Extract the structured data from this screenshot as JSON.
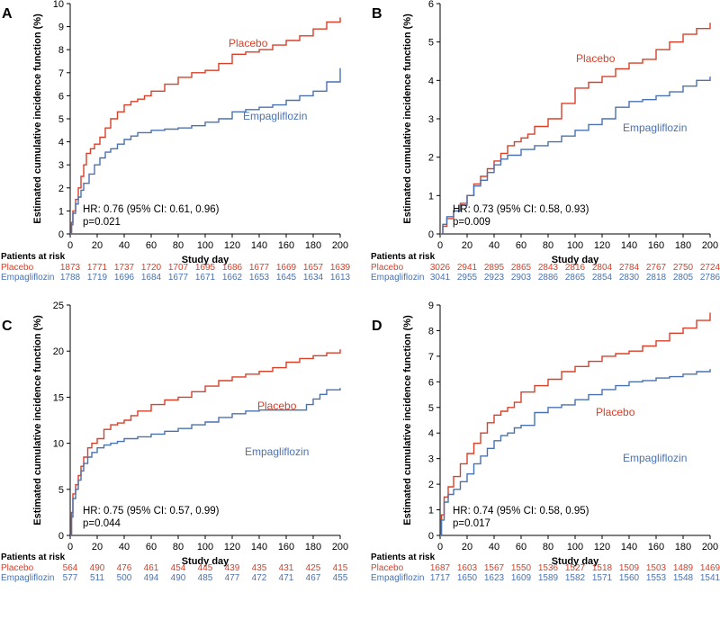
{
  "colors": {
    "placebo": "#d8402a",
    "empagliflozin": "#4a72b0",
    "axis": "#000000"
  },
  "chart_data": {
    "type": "line",
    "step": true,
    "panels": [
      {
        "label": "A",
        "ylabel": "Estimated cumulative incidence function (%)",
        "xlabel": "Study day",
        "xlim": [
          0,
          200
        ],
        "ylim": [
          0,
          10
        ],
        "xticks": [
          0,
          20,
          40,
          60,
          80,
          100,
          120,
          140,
          160,
          180,
          200
        ],
        "yticks": [
          0,
          1,
          2,
          3,
          4,
          5,
          6,
          7,
          8,
          9,
          10
        ],
        "series": [
          {
            "name": "Placebo",
            "key": "placebo",
            "x": [
              0,
              1,
              2,
              4,
              6,
              8,
              10,
              12,
              15,
              18,
              22,
              26,
              30,
              35,
              40,
              45,
              50,
              55,
              60,
              70,
              80,
              90,
              100,
              110,
              120,
              130,
              140,
              150,
              160,
              170,
              180,
              190,
              200
            ],
            "y": [
              0,
              0.5,
              1.0,
              1.5,
              2.0,
              2.5,
              3.0,
              3.5,
              3.7,
              3.9,
              4.2,
              4.6,
              5.0,
              5.3,
              5.6,
              5.75,
              5.85,
              6.0,
              6.2,
              6.5,
              6.8,
              7.0,
              7.1,
              7.4,
              7.8,
              7.9,
              8.0,
              8.2,
              8.4,
              8.6,
              8.9,
              9.2,
              9.4
            ]
          },
          {
            "name": "Empagliflozin",
            "key": "empagliflozin",
            "x": [
              0,
              1,
              2,
              4,
              6,
              8,
              10,
              14,
              18,
              22,
              26,
              30,
              35,
              40,
              45,
              50,
              60,
              70,
              80,
              90,
              100,
              110,
              120,
              130,
              140,
              150,
              160,
              170,
              180,
              190,
              200
            ],
            "y": [
              0,
              0.4,
              0.9,
              1.3,
              1.6,
              1.9,
              2.2,
              2.6,
              3.0,
              3.3,
              3.55,
              3.7,
              3.9,
              4.1,
              4.25,
              4.4,
              4.5,
              4.55,
              4.6,
              4.7,
              4.85,
              5.0,
              5.3,
              5.4,
              5.5,
              5.6,
              5.8,
              6.0,
              6.2,
              6.6,
              7.2
            ]
          }
        ],
        "hr_text": "HR: 0.76 (95% CI: 0.61, 0.96)",
        "p_text": "p=0.021",
        "risk": {
          "header": "Patients at risk",
          "rows": [
            {
              "name": "Placebo",
              "key": "placebo",
              "values": [
                "1873",
                "1771",
                "1737",
                "1720",
                "1707",
                "1695",
                "1686",
                "1677",
                "1669",
                "1657",
                "1639"
              ]
            },
            {
              "name": "Empagliflozin",
              "key": "empagliflozin",
              "values": [
                "1788",
                "1719",
                "1696",
                "1684",
                "1677",
                "1671",
                "1662",
                "1653",
                "1645",
                "1634",
                "1613"
              ]
            }
          ]
        }
      },
      {
        "label": "B",
        "ylabel": "Estimated cumulative incidence function (%)",
        "xlabel": "Study day",
        "xlim": [
          0,
          200
        ],
        "ylim": [
          0,
          6
        ],
        "xticks": [
          0,
          20,
          40,
          60,
          80,
          100,
          120,
          140,
          160,
          180,
          200
        ],
        "yticks": [
          0,
          1,
          2,
          3,
          4,
          5,
          6
        ],
        "series": [
          {
            "name": "Placebo",
            "key": "placebo",
            "x": [
              0,
              2,
              5,
              10,
              15,
              20,
              25,
              30,
              35,
              40,
              45,
              50,
              55,
              60,
              65,
              70,
              80,
              90,
              100,
              110,
              120,
              130,
              140,
              150,
              160,
              170,
              180,
              190,
              200
            ],
            "y": [
              0,
              0.2,
              0.4,
              0.6,
              0.8,
              1.0,
              1.3,
              1.5,
              1.7,
              1.9,
              2.1,
              2.3,
              2.4,
              2.5,
              2.6,
              2.8,
              3.0,
              3.4,
              3.8,
              3.95,
              4.1,
              4.3,
              4.45,
              4.55,
              4.8,
              5.0,
              5.2,
              5.35,
              5.5
            ]
          },
          {
            "name": "Empagliflozin",
            "key": "empagliflozin",
            "x": [
              0,
              2,
              5,
              10,
              15,
              20,
              25,
              30,
              35,
              40,
              45,
              50,
              60,
              70,
              80,
              90,
              100,
              110,
              120,
              130,
              140,
              150,
              160,
              170,
              180,
              190,
              200
            ],
            "y": [
              0,
              0.25,
              0.45,
              0.6,
              0.75,
              1.0,
              1.25,
              1.4,
              1.6,
              1.8,
              1.95,
              2.05,
              2.2,
              2.3,
              2.4,
              2.55,
              2.7,
              2.85,
              3.0,
              3.3,
              3.45,
              3.5,
              3.6,
              3.7,
              3.85,
              4.0,
              4.1
            ]
          }
        ],
        "hr_text": "HR: 0.73 (95% CI: 0.58, 0.93)",
        "p_text": "p=0.009",
        "risk": {
          "header": "Patients at risk",
          "rows": [
            {
              "name": "Placebo",
              "key": "placebo",
              "values": [
                "3026",
                "2941",
                "2895",
                "2865",
                "2843",
                "2816",
                "2804",
                "2784",
                "2767",
                "2750",
                "2724"
              ]
            },
            {
              "name": "Empagliflozin",
              "key": "empagliflozin",
              "values": [
                "3041",
                "2955",
                "2923",
                "2903",
                "2886",
                "2865",
                "2854",
                "2830",
                "2818",
                "2805",
                "2786"
              ]
            }
          ]
        }
      },
      {
        "label": "C",
        "ylabel": "Estimated cumulative incidence function (%)",
        "xlabel": "Study day",
        "xlim": [
          0,
          200
        ],
        "ylim": [
          0,
          25
        ],
        "xticks": [
          0,
          20,
          40,
          60,
          80,
          100,
          120,
          140,
          160,
          180,
          200
        ],
        "yticks": [
          0,
          5,
          10,
          15,
          20,
          25
        ],
        "series": [
          {
            "name": "Placebo",
            "key": "placebo",
            "x": [
              0,
              1,
              2,
              4,
              6,
              8,
              10,
              13,
              16,
              20,
              25,
              30,
              35,
              40,
              45,
              50,
              60,
              70,
              80,
              90,
              100,
              110,
              120,
              130,
              140,
              150,
              160,
              170,
              180,
              190,
              200
            ],
            "y": [
              0,
              2.5,
              4.5,
              5.5,
              6.5,
              7.5,
              8.5,
              9.5,
              10.0,
              10.5,
              11.5,
              12.0,
              12.2,
              12.5,
              13.0,
              13.5,
              14.2,
              14.7,
              15.0,
              15.6,
              16.2,
              16.8,
              17.2,
              17.5,
              17.8,
              18.2,
              18.8,
              19.2,
              19.5,
              19.8,
              20.2
            ]
          },
          {
            "name": "Empagliflozin",
            "key": "empagliflozin",
            "x": [
              0,
              1,
              2,
              4,
              6,
              8,
              10,
              13,
              16,
              20,
              25,
              30,
              35,
              40,
              50,
              60,
              70,
              80,
              90,
              100,
              110,
              120,
              130,
              140,
              150,
              160,
              170,
              175,
              180,
              185,
              190,
              200
            ],
            "y": [
              0,
              2.0,
              4.0,
              5.0,
              6.0,
              7.0,
              7.8,
              8.5,
              9.0,
              9.5,
              9.8,
              10.0,
              10.2,
              10.5,
              10.7,
              11.0,
              11.3,
              11.6,
              12.0,
              12.3,
              12.8,
              13.2,
              13.5,
              13.6,
              13.6,
              13.6,
              13.6,
              14.2,
              14.8,
              15.3,
              15.8,
              16.0
            ]
          }
        ],
        "hr_text": "HR: 0.75 (95% CI: 0.57, 0.99)",
        "p_text": "p=0.044",
        "risk": {
          "header": "Patients at risk",
          "rows": [
            {
              "name": "Placebo",
              "key": "placebo",
              "values": [
                "564",
                "490",
                "476",
                "461",
                "454",
                "445",
                "439",
                "435",
                "431",
                "425",
                "415"
              ]
            },
            {
              "name": "Empagliflozin",
              "key": "empagliflozin",
              "values": [
                "577",
                "511",
                "500",
                "494",
                "490",
                "485",
                "477",
                "472",
                "471",
                "467",
                "455"
              ]
            }
          ]
        }
      },
      {
        "label": "D",
        "ylabel": "Estimated cumulative incidence function (%)",
        "xlabel": "Study day",
        "xlim": [
          0,
          200
        ],
        "ylim": [
          0,
          9
        ],
        "xticks": [
          0,
          20,
          40,
          60,
          80,
          100,
          120,
          140,
          160,
          180,
          200
        ],
        "yticks": [
          0,
          1,
          2,
          3,
          4,
          5,
          6,
          7,
          8,
          9
        ],
        "series": [
          {
            "name": "Placebo",
            "key": "placebo",
            "x": [
              0,
              1,
              3,
              6,
              10,
              15,
              20,
              25,
              30,
              35,
              40,
              45,
              50,
              55,
              60,
              70,
              80,
              90,
              100,
              110,
              120,
              130,
              140,
              150,
              160,
              170,
              180,
              190,
              200
            ],
            "y": [
              0,
              0.8,
              1.5,
              1.9,
              2.3,
              2.8,
              3.2,
              3.6,
              4.0,
              4.4,
              4.7,
              4.85,
              5.0,
              5.2,
              5.6,
              5.85,
              6.1,
              6.4,
              6.6,
              6.8,
              7.0,
              7.1,
              7.2,
              7.4,
              7.6,
              7.9,
              8.1,
              8.4,
              8.7
            ]
          },
          {
            "name": "Empagliflozin",
            "key": "empagliflozin",
            "x": [
              0,
              1,
              3,
              6,
              10,
              15,
              20,
              25,
              30,
              35,
              40,
              45,
              50,
              55,
              60,
              70,
              80,
              90,
              100,
              110,
              120,
              130,
              140,
              150,
              160,
              170,
              180,
              190,
              200
            ],
            "y": [
              0,
              0.6,
              1.3,
              1.6,
              1.8,
              2.1,
              2.4,
              2.8,
              3.1,
              3.4,
              3.7,
              3.9,
              4.0,
              4.2,
              4.3,
              4.8,
              5.0,
              5.1,
              5.3,
              5.5,
              5.7,
              5.85,
              6.0,
              6.05,
              6.15,
              6.2,
              6.3,
              6.4,
              6.5
            ]
          }
        ],
        "hr_text": "HR: 0.74 (95% CI: 0.58, 0.95)",
        "p_text": "p=0.017",
        "risk": {
          "header": "Patients at risk",
          "rows": [
            {
              "name": "Placebo",
              "key": "placebo",
              "values": [
                "1687",
                "1603",
                "1567",
                "1550",
                "1536",
                "1527",
                "1518",
                "1509",
                "1503",
                "1489",
                "1469"
              ]
            },
            {
              "name": "Empagliflozin",
              "key": "empagliflozin",
              "values": [
                "1717",
                "1650",
                "1623",
                "1609",
                "1589",
                "1582",
                "1571",
                "1560",
                "1553",
                "1548",
                "1541"
              ]
            }
          ]
        }
      }
    ]
  }
}
